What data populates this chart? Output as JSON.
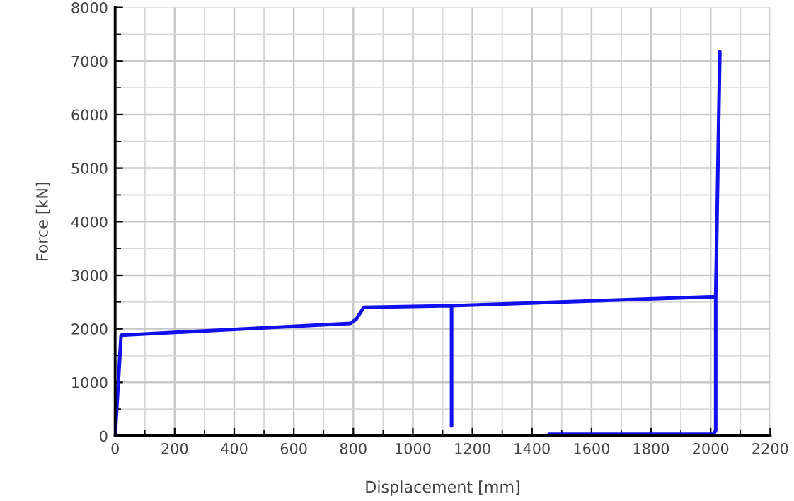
{
  "chart_data": {
    "type": "line",
    "xlabel": "Displacement [mm]",
    "ylabel": "Force [kN]",
    "series": [
      {
        "color": "#1010ee",
        "x": [
          0,
          20,
          790,
          810,
          835,
          1130,
          2017,
          2031,
          null,
          1130,
          1130,
          null,
          1457,
          2010,
          2017,
          2017
        ],
        "values": [
          0,
          1880,
          2100,
          2180,
          2400,
          2430,
          2600,
          7180,
          null,
          2430,
          185,
          null,
          30,
          30,
          100,
          2600
        ]
      }
    ],
    "xlim": [
      0,
      2200
    ],
    "xticks": [
      0,
      200,
      400,
      600,
      800,
      1000,
      1200,
      1400,
      1600,
      1800,
      2000,
      2200
    ],
    "ylim": [
      0,
      8000
    ],
    "yticks": [
      0,
      1000,
      2000,
      3000,
      4000,
      5000,
      6000,
      7000,
      8000
    ],
    "grid": true,
    "legend": false
  }
}
